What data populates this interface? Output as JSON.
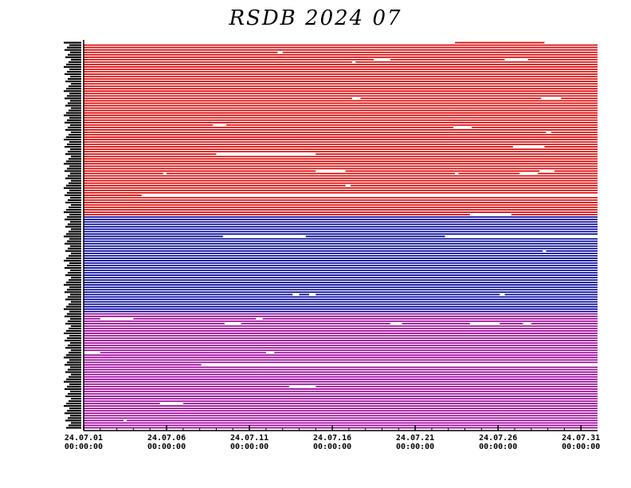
{
  "chart_data": {
    "type": "line",
    "title": "RSDB  2024  07",
    "x_ticks": [
      {
        "line1": "24.07.01",
        "line2": "00:00:00",
        "day": 1
      },
      {
        "line1": "24.07.06",
        "line2": "00:00:00",
        "day": 6
      },
      {
        "line1": "24.07.11",
        "line2": "00:00:00",
        "day": 11
      },
      {
        "line1": "24.07.16",
        "line2": "00:00:00",
        "day": 16
      },
      {
        "line1": "24.07.21",
        "line2": "00:00:00",
        "day": 21
      },
      {
        "line1": "24.07.26",
        "line2": "00:00:00",
        "day": 26
      },
      {
        "line1": "24.07.31",
        "line2": "00:00:00",
        "day": 31
      }
    ],
    "xlim": [
      "2024-07-01",
      "2024-08-01"
    ],
    "groups": [
      {
        "color": "#dd0000",
        "rows": 72
      },
      {
        "color": "#000099",
        "rows": 40
      },
      {
        "color": "#990099",
        "rows": 48
      }
    ],
    "gaps": [
      {
        "group": 0,
        "row": 0,
        "from": 1,
        "to": 23.4
      },
      {
        "group": 0,
        "row": 0,
        "from": 28.8,
        "to": 32
      },
      {
        "group": 0,
        "row": 4,
        "from": 12.7,
        "to": 13.0
      },
      {
        "group": 0,
        "row": 7,
        "from": 18.5,
        "to": 19.5
      },
      {
        "group": 0,
        "row": 7,
        "from": 26.4,
        "to": 27.8
      },
      {
        "group": 0,
        "row": 8,
        "from": 17.2,
        "to": 17.4
      },
      {
        "group": 0,
        "row": 23,
        "from": 17.2,
        "to": 17.7
      },
      {
        "group": 0,
        "row": 23,
        "from": 28.6,
        "to": 29.8
      },
      {
        "group": 0,
        "row": 34,
        "from": 8.8,
        "to": 9.6
      },
      {
        "group": 0,
        "row": 35,
        "from": 23.3,
        "to": 24.4
      },
      {
        "group": 0,
        "row": 37,
        "from": 28.9,
        "to": 29.2
      },
      {
        "group": 0,
        "row": 43,
        "from": 26.9,
        "to": 28.8
      },
      {
        "group": 0,
        "row": 46,
        "from": 9.0,
        "to": 15.0
      },
      {
        "group": 0,
        "row": 53,
        "from": 15.0,
        "to": 16.8
      },
      {
        "group": 0,
        "row": 53,
        "from": 28.5,
        "to": 29.4
      },
      {
        "group": 0,
        "row": 54,
        "from": 5.8,
        "to": 6.0
      },
      {
        "group": 0,
        "row": 54,
        "from": 23.4,
        "to": 23.6
      },
      {
        "group": 0,
        "row": 54,
        "from": 27.3,
        "to": 28.4
      },
      {
        "group": 0,
        "row": 59,
        "from": 16.8,
        "to": 17.1
      },
      {
        "group": 0,
        "row": 63,
        "from": 4.5,
        "to": 32
      },
      {
        "group": 0,
        "row": 71,
        "from": 24.3,
        "to": 26.8
      },
      {
        "group": 1,
        "row": 8,
        "from": 9.4,
        "to": 14.4
      },
      {
        "group": 1,
        "row": 8,
        "from": 22.8,
        "to": 32
      },
      {
        "group": 1,
        "row": 14,
        "from": 28.7,
        "to": 28.9
      },
      {
        "group": 1,
        "row": 24,
        "from": 32,
        "to": 32
      },
      {
        "group": 1,
        "row": 32,
        "from": 13.6,
        "to": 14.0
      },
      {
        "group": 1,
        "row": 32,
        "from": 14.6,
        "to": 15.0
      },
      {
        "group": 1,
        "row": 32,
        "from": 26.1,
        "to": 26.4
      },
      {
        "group": 2,
        "row": 2,
        "from": 2.0,
        "to": 4.0
      },
      {
        "group": 2,
        "row": 2,
        "from": 11.4,
        "to": 11.8
      },
      {
        "group": 2,
        "row": 4,
        "from": 9.5,
        "to": 10.5
      },
      {
        "group": 2,
        "row": 4,
        "from": 19.5,
        "to": 20.2
      },
      {
        "group": 2,
        "row": 4,
        "from": 24.3,
        "to": 26.1
      },
      {
        "group": 2,
        "row": 4,
        "from": 27.5,
        "to": 28.0
      },
      {
        "group": 2,
        "row": 16,
        "from": 1.0,
        "to": 2.0
      },
      {
        "group": 2,
        "row": 16,
        "from": 12.0,
        "to": 12.5
      },
      {
        "group": 2,
        "row": 21,
        "from": 8.1,
        "to": 32
      },
      {
        "group": 2,
        "row": 30,
        "from": 13.4,
        "to": 15.0
      },
      {
        "group": 2,
        "row": 37,
        "from": 5.6,
        "to": 7.0
      },
      {
        "group": 2,
        "row": 44,
        "from": 3.4,
        "to": 3.6
      }
    ]
  }
}
